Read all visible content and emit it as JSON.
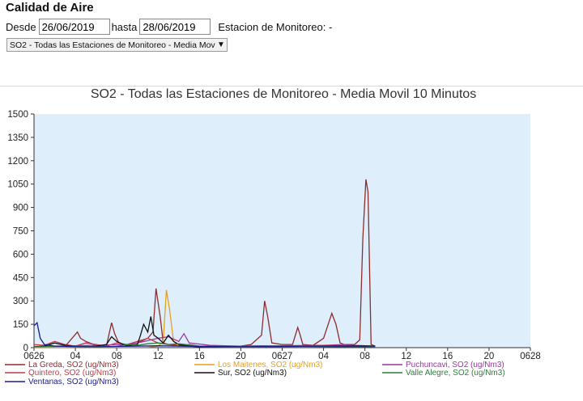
{
  "app": {
    "title": "Calidad de Aire"
  },
  "filters": {
    "desde_label": "Desde",
    "desde_value": "26/06/2019",
    "hasta_label": "hasta",
    "hasta_value": "28/06/2019",
    "station_label": "Estacion de Monitoreo: -"
  },
  "select": {
    "value": "SO2 - Todas las Estaciones de Monitoreo - Media Movil 10 Minutos",
    "arrow": "▼"
  },
  "colors": {
    "plot_bg": "#dfeefb",
    "la_greda": "#8b2d2d",
    "los_maitenes": "#e6a01e",
    "puchuncavi": "#9a35a0",
    "quintero": "#c03a4a",
    "sur": "#111111",
    "valle_alegre": "#2e7d3e",
    "ventanas": "#1a1a8c"
  },
  "chart_data": {
    "type": "line",
    "title": "SO2 - Todas las Estaciones de Monitoreo - Media Movil 10 Minutos",
    "ylim": [
      0,
      1500
    ],
    "y_ticks": [
      "1500",
      "1350",
      "1200",
      "1050",
      "900",
      "750",
      "600",
      "450",
      "300",
      "150",
      "0"
    ],
    "x_ticks": [
      "0626",
      "04",
      "08",
      "12",
      "16",
      "20",
      "0627",
      "04",
      "08",
      "12",
      "16",
      "20",
      "0628"
    ],
    "x_unit": "hours since 26/06/2019 00:00",
    "xlim": [
      0,
      48
    ],
    "grid": false,
    "legend_position": "bottom",
    "series": [
      {
        "name": "La Greda, SO2 (ug/Nm3)",
        "color_key": "la_greda",
        "x": [
          0,
          3,
          4.2,
          4.5,
          5,
          5.8,
          7,
          7.5,
          7.8,
          8.2,
          9,
          10,
          11,
          11.5,
          11.8,
          12.2,
          12.5,
          13,
          14,
          16,
          18,
          20,
          21,
          22,
          22.3,
          22.6,
          23,
          24,
          25,
          25.5,
          25.7,
          26,
          27,
          28,
          28.8,
          29.2,
          29.6,
          30,
          31,
          31.5,
          31.8,
          32.1,
          32.3,
          32.6,
          33
        ],
        "y": [
          5,
          8,
          100,
          60,
          40,
          20,
          10,
          160,
          90,
          30,
          15,
          30,
          60,
          100,
          380,
          200,
          30,
          20,
          15,
          10,
          8,
          10,
          20,
          80,
          300,
          200,
          30,
          20,
          20,
          130,
          90,
          20,
          15,
          60,
          220,
          150,
          30,
          20,
          20,
          50,
          700,
          1080,
          1000,
          20,
          10
        ]
      },
      {
        "name": "Los Maitenes, SO2 (ug/Nm3)",
        "color_key": "los_maitenes",
        "x": [
          0,
          11,
          12,
          12.5,
          12.8,
          13.1,
          13.5,
          14,
          16,
          20,
          24,
          28,
          33
        ],
        "y": [
          2,
          3,
          10,
          40,
          370,
          250,
          40,
          10,
          5,
          3,
          3,
          3,
          3
        ]
      },
      {
        "name": "Puchuncavi, SO2 (ug/Nm3)",
        "color_key": "puchuncavi",
        "x": [
          0,
          6,
          9,
          10,
          12,
          13,
          14,
          14.5,
          15,
          17,
          20,
          24,
          28,
          30,
          31,
          33
        ],
        "y": [
          8,
          15,
          20,
          30,
          60,
          70,
          40,
          90,
          30,
          15,
          10,
          12,
          15,
          20,
          15,
          10
        ]
      },
      {
        "name": "Quintero, SO2 (ug/Nm3)",
        "color_key": "quintero",
        "x": [
          0,
          1,
          2,
          3,
          4,
          5,
          6,
          7,
          8,
          9,
          10,
          11,
          12,
          13,
          14,
          15,
          16,
          18,
          20,
          24,
          28,
          32,
          33
        ],
        "y": [
          20,
          15,
          40,
          20,
          10,
          30,
          20,
          10,
          30,
          20,
          40,
          60,
          30,
          20,
          10,
          20,
          10,
          8,
          5,
          10,
          15,
          10,
          8
        ]
      },
      {
        "name": "Sur, SO2 (ug/Nm3)",
        "color_key": "sur",
        "x": [
          0,
          1,
          2,
          3,
          4,
          5,
          6,
          7,
          7.5,
          8,
          9,
          10,
          10.3,
          10.6,
          11,
          11.3,
          11.6,
          12,
          12.5,
          13,
          13.5,
          14,
          15,
          16,
          20,
          24,
          28,
          32,
          33
        ],
        "y": [
          5,
          10,
          30,
          15,
          10,
          5,
          10,
          20,
          70,
          40,
          10,
          20,
          80,
          150,
          100,
          200,
          80,
          60,
          30,
          80,
          40,
          20,
          10,
          5,
          5,
          5,
          5,
          5,
          5
        ]
      },
      {
        "name": "Valle Alegre, SO2 (ug/Nm3)",
        "color_key": "valle_alegre",
        "x": [
          0,
          2,
          4,
          6,
          8,
          9,
          10,
          11,
          12,
          13,
          14,
          16,
          18,
          20,
          22,
          24,
          26,
          28,
          30,
          32,
          33
        ],
        "y": [
          5,
          8,
          10,
          6,
          8,
          20,
          15,
          25,
          30,
          20,
          25,
          10,
          8,
          10,
          12,
          8,
          6,
          8,
          10,
          10,
          8
        ]
      },
      {
        "name": "Ventanas, SO2 (ug/Nm3)",
        "color_key": "ventanas",
        "x": [
          0,
          0.3,
          0.6,
          1,
          2,
          3,
          4,
          6,
          8,
          10,
          12,
          14,
          16,
          20,
          24,
          28,
          32,
          33
        ],
        "y": [
          140,
          160,
          60,
          20,
          10,
          8,
          6,
          5,
          8,
          10,
          12,
          10,
          8,
          6,
          8,
          10,
          12,
          10
        ]
      }
    ]
  }
}
